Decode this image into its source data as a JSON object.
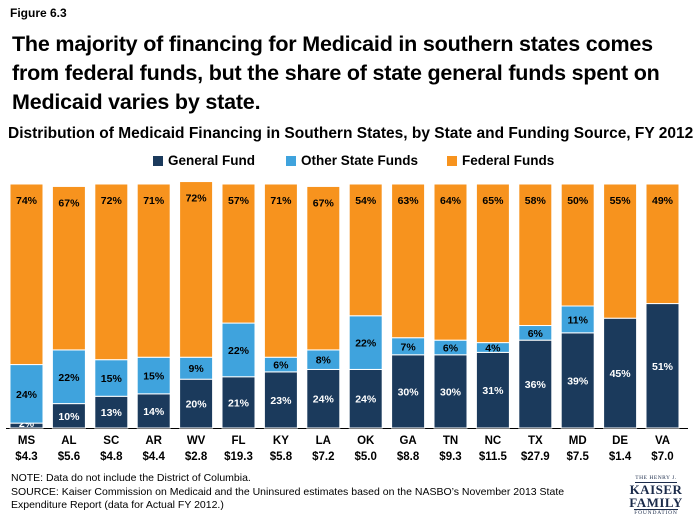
{
  "figure_label": "Figure 6.3",
  "headline": "The majority of financing for Medicaid in southern states comes from federal funds, but the share of state general funds spent on Medicaid varies by state.",
  "note": "NOTE: Data do not include the District of Columbia.",
  "source": "SOURCE: Kaiser Commission on Medicaid and the Uninsured estimates based on the NASBO’s November 2013 State Expenditure Report (data for Actual FY 2012.)",
  "logo": {
    "line1": "THE HENRY J.",
    "line2": "KAISER",
    "line3": "FAMILY",
    "line4": "FOUNDATION"
  },
  "chart_data": {
    "type": "bar",
    "stacked": true,
    "title": "Distribution of Medicaid Financing in Southern States, by State and Funding Source, FY 2012",
    "categories": [
      "MS",
      "AL",
      "SC",
      "AR",
      "WV",
      "FL",
      "KY",
      "LA",
      "OK",
      "GA",
      "TN",
      "NC",
      "TX",
      "MD",
      "DE",
      "VA"
    ],
    "category_totals": [
      "$4.3",
      "$5.6",
      "$4.8",
      "$4.4",
      "$2.8",
      "$19.3",
      "$5.8",
      "$7.2",
      "$5.0",
      "$8.8",
      "$9.3",
      "$11.5",
      "$27.9",
      "$7.5",
      "$1.4",
      "$7.0"
    ],
    "ylim": [
      0,
      100
    ],
    "legend_position": "top",
    "series": [
      {
        "name": "General Fund",
        "color": "#1b3a5c",
        "values": [
          2,
          10,
          13,
          14,
          20,
          21,
          23,
          24,
          24,
          30,
          30,
          31,
          36,
          39,
          45,
          51
        ]
      },
      {
        "name": "Other State Funds",
        "color": "#3fa3dd",
        "values": [
          24,
          22,
          15,
          15,
          9,
          22,
          6,
          8,
          22,
          7,
          6,
          4,
          6,
          11,
          0,
          0
        ]
      },
      {
        "name": "Federal Funds",
        "color": "#f7931e",
        "values": [
          74,
          67,
          72,
          71,
          72,
          57,
          71,
          67,
          54,
          63,
          64,
          65,
          58,
          50,
          55,
          49
        ]
      }
    ]
  }
}
